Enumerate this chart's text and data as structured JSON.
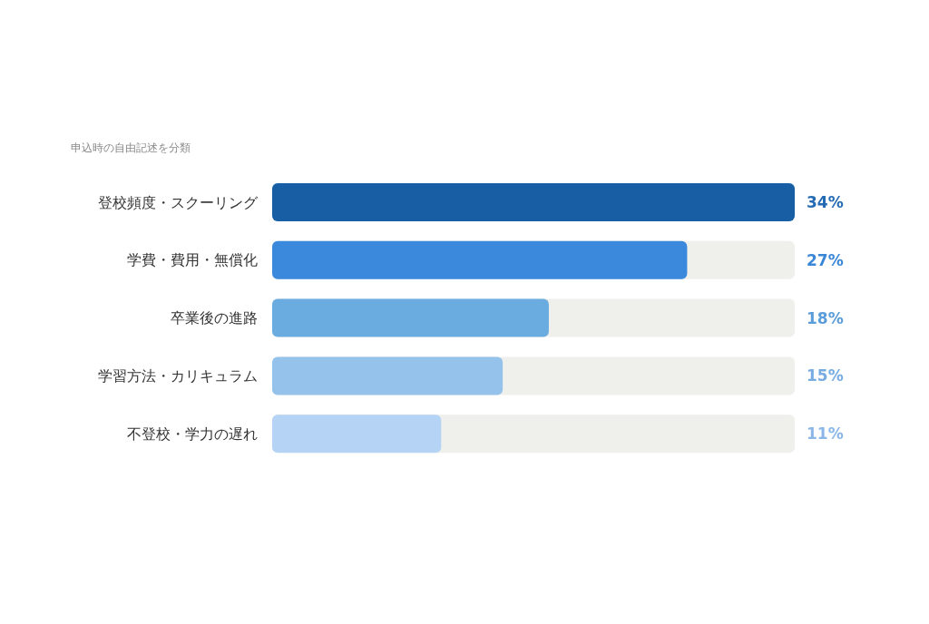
{
  "chart_data": {
    "type": "bar",
    "orientation": "horizontal",
    "title": "申込時の自由記述を分類",
    "categories": [
      "登校頻度・スクーリング",
      "学費・費用・無償化",
      "卒業後の進路",
      "学習方法・カリキュラム",
      "不登校・学力の遅れ"
    ],
    "values": [
      34,
      27,
      18,
      15,
      11
    ],
    "colors": [
      "#185ea5",
      "#3a89dc",
      "#6aabe0",
      "#95c2eb",
      "#b5d4f5"
    ],
    "value_labels": [
      "34%",
      "27%",
      "18%",
      "15%",
      "11%"
    ],
    "xlim": [
      0,
      34
    ],
    "tick_labels": "y"
  }
}
